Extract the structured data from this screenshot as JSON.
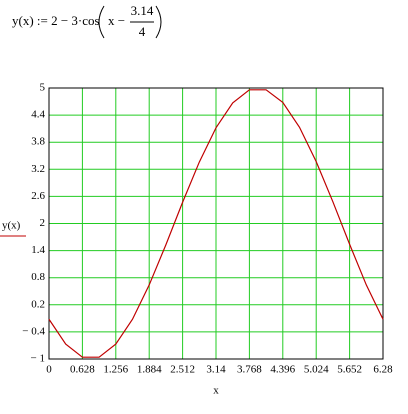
{
  "chart_data": {
    "type": "line",
    "formula": {
      "prefix": "y(x) := 2 − 3·cos",
      "arg": "x −",
      "numerator": "3.14",
      "denominator": "4"
    },
    "xlabel": "x",
    "ylabel": "y(x)",
    "x": [
      0,
      0.314,
      0.628,
      0.942,
      1.256,
      1.57,
      1.884,
      2.198,
      2.512,
      2.826,
      3.14,
      3.454,
      3.768,
      4.082,
      4.396,
      4.71,
      5.024,
      5.338,
      5.652,
      5.966,
      6.28
    ],
    "series": [
      {
        "color": "#c00000",
        "values": [
          -0.12,
          -0.67,
          -0.96,
          -0.96,
          -0.67,
          -0.12,
          0.64,
          1.53,
          2.47,
          3.36,
          4.12,
          4.67,
          4.96,
          4.96,
          4.68,
          4.13,
          3.37,
          2.48,
          1.54,
          0.64,
          -0.12
        ]
      }
    ],
    "xlim": [
      0,
      6.28
    ],
    "ylim": [
      -1,
      5
    ],
    "xticks": [
      0,
      0.628,
      1.256,
      1.884,
      2.512,
      3.14,
      3.768,
      4.396,
      5.024,
      5.652,
      6.28
    ],
    "yticks": [
      {
        "value": -1,
        "label": "− 1"
      },
      {
        "value": -0.4,
        "label": "− 0.4"
      },
      0.2,
      0.8,
      1.4,
      2,
      2.6,
      3.2,
      3.8,
      4.4,
      5
    ],
    "grid": true,
    "grid_color": "#22cc22"
  }
}
